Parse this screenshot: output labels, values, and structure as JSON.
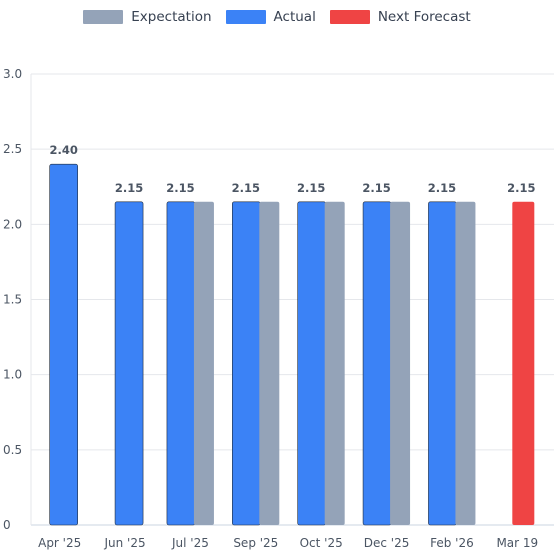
{
  "chart_data": {
    "type": "bar",
    "categories": [
      "Apr '25",
      "Jun '25",
      "Jul '25",
      "Sep '25",
      "Oct '25",
      "Dec '25",
      "Feb '26",
      "Mar 19"
    ],
    "series": [
      {
        "name": "Actual",
        "color": "#3b82f6",
        "values": [
          2.4,
          2.15,
          2.15,
          2.15,
          2.15,
          2.15,
          2.15,
          null
        ]
      },
      {
        "name": "Expectation",
        "color": "#94a3b8",
        "values": [
          null,
          null,
          2.15,
          2.15,
          2.15,
          2.15,
          2.15,
          null
        ]
      },
      {
        "name": "Next Forecast",
        "color": "#ef4444",
        "values": [
          null,
          null,
          null,
          null,
          null,
          null,
          null,
          2.15
        ]
      }
    ],
    "data_labels": [
      "2.40",
      "2.15",
      "2.15",
      "2.15",
      "2.15",
      "2.15",
      "2.15",
      "2.15"
    ],
    "y_ticks": [
      "0",
      "0.5",
      "1.0",
      "1.5",
      "2.0",
      "2.5",
      "3.0"
    ],
    "ylim": [
      0,
      3
    ],
    "grid": true,
    "legend_position": "top-center"
  },
  "legend": [
    {
      "label": "Expectation",
      "color": "#94a3b8"
    },
    {
      "label": "Actual",
      "color": "#3b82f6"
    },
    {
      "label": "Next Forecast",
      "color": "#ef4444"
    }
  ]
}
